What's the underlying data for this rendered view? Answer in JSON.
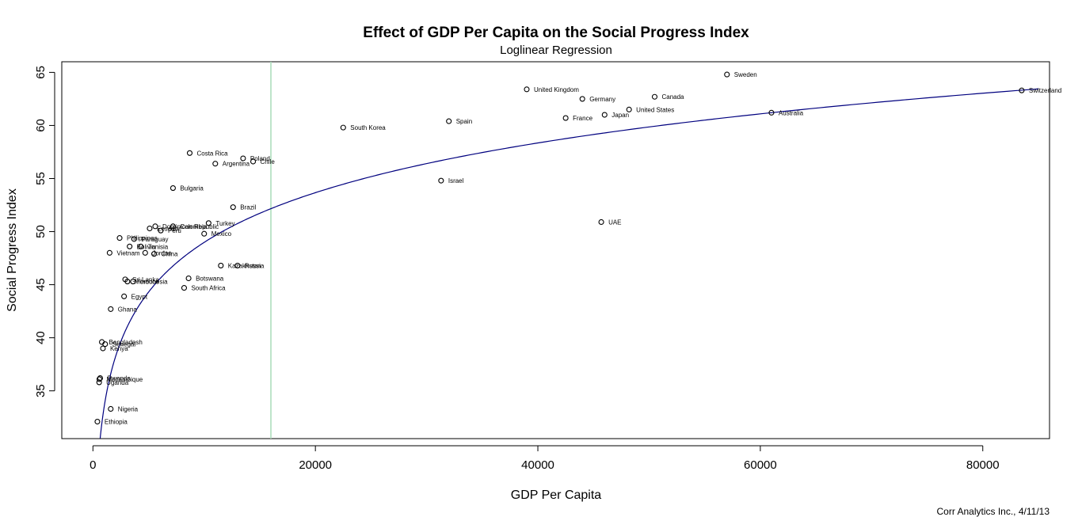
{
  "chart_data": {
    "type": "scatter",
    "title": "Effect of GDP Per Capita on the Social Progress Index",
    "subtitle": "Loglinear Regression",
    "xlabel": "GDP Per Capita",
    "ylabel": "Social Progress Index",
    "xlim": [
      -2800,
      86000
    ],
    "ylim": [
      30.5,
      66
    ],
    "x_ticks": [
      0,
      20000,
      40000,
      60000,
      80000
    ],
    "y_ticks": [
      35,
      40,
      45,
      50,
      55,
      60,
      65
    ],
    "grid": false,
    "vertical_line": {
      "x": 16000,
      "color": "#a8dcb8"
    },
    "fit_curve": {
      "model": "loglinear",
      "color": "#00007f",
      "a": -13.24,
      "b": 6.756,
      "x_range": [
        530,
        85000
      ]
    },
    "points": [
      {
        "label": "Switzerland",
        "x": 83500,
        "y": 63.3
      },
      {
        "label": "Sweden",
        "x": 57000,
        "y": 64.8
      },
      {
        "label": "United Kingdom",
        "x": 39000,
        "y": 63.4
      },
      {
        "label": "Germany",
        "x": 44000,
        "y": 62.5
      },
      {
        "label": "Canada",
        "x": 50500,
        "y": 62.7
      },
      {
        "label": "United States",
        "x": 48200,
        "y": 61.5
      },
      {
        "label": "Australia",
        "x": 61000,
        "y": 61.2
      },
      {
        "label": "Japan",
        "x": 46000,
        "y": 61.0
      },
      {
        "label": "France",
        "x": 42500,
        "y": 60.7
      },
      {
        "label": "Spain",
        "x": 32000,
        "y": 60.4
      },
      {
        "label": "South Korea",
        "x": 22500,
        "y": 59.8
      },
      {
        "label": "Israel",
        "x": 31300,
        "y": 54.8
      },
      {
        "label": "UAE",
        "x": 45700,
        "y": 50.9
      },
      {
        "label": "Costa Rica",
        "x": 8700,
        "y": 57.4
      },
      {
        "label": "Poland",
        "x": 13500,
        "y": 56.9
      },
      {
        "label": "Chile",
        "x": 14400,
        "y": 56.6
      },
      {
        "label": "Argentina",
        "x": 11000,
        "y": 56.4
      },
      {
        "label": "Bulgaria",
        "x": 7200,
        "y": 54.1
      },
      {
        "label": "Brazil",
        "x": 12600,
        "y": 52.3
      },
      {
        "label": "Turkey",
        "x": 10400,
        "y": 50.8
      },
      {
        "label": "Mexico",
        "x": 10000,
        "y": 49.8
      },
      {
        "label": "Colombia",
        "x": 7200,
        "y": 50.5
      },
      {
        "label": "Dominican Republic",
        "x": 5600,
        "y": 50.5
      },
      {
        "label": "Peru",
        "x": 6100,
        "y": 50.1
      },
      {
        "label": "Ecuador",
        "x": 5100,
        "y": 50.3
      },
      {
        "label": "Philippines",
        "x": 2400,
        "y": 49.4
      },
      {
        "label": "Paraguay",
        "x": 3700,
        "y": 49.3
      },
      {
        "label": "Bolivia",
        "x": 3300,
        "y": 48.6
      },
      {
        "label": "Tunisia",
        "x": 4300,
        "y": 48.6
      },
      {
        "label": "Vietnam",
        "x": 1500,
        "y": 48.0
      },
      {
        "label": "Jordan",
        "x": 4700,
        "y": 48.0
      },
      {
        "label": "China",
        "x": 5500,
        "y": 47.9
      },
      {
        "label": "Kazakhstan",
        "x": 11500,
        "y": 46.8
      },
      {
        "label": "Russia",
        "x": 13000,
        "y": 46.8
      },
      {
        "label": "Sri Lanka",
        "x": 2900,
        "y": 45.5
      },
      {
        "label": "Morocco",
        "x": 3100,
        "y": 45.3
      },
      {
        "label": "Indonesia",
        "x": 3600,
        "y": 45.3
      },
      {
        "label": "Botswana",
        "x": 8600,
        "y": 45.6
      },
      {
        "label": "South Africa",
        "x": 8200,
        "y": 44.7
      },
      {
        "label": "Egypt",
        "x": 2800,
        "y": 43.9
      },
      {
        "label": "Ghana",
        "x": 1600,
        "y": 42.7
      },
      {
        "label": "Bangladesh",
        "x": 800,
        "y": 39.6
      },
      {
        "label": "Senegal",
        "x": 1100,
        "y": 39.4
      },
      {
        "label": "Kenya",
        "x": 900,
        "y": 39.0
      },
      {
        "label": "Rwanda",
        "x": 650,
        "y": 36.2
      },
      {
        "label": "Mozambique",
        "x": 580,
        "y": 36.1
      },
      {
        "label": "Uganda",
        "x": 560,
        "y": 35.8
      },
      {
        "label": "Nigeria",
        "x": 1600,
        "y": 33.3
      },
      {
        "label": "Ethiopia",
        "x": 400,
        "y": 32.1
      }
    ]
  },
  "footer": {
    "credit": "Corr Analytics Inc., 4/11/13"
  }
}
